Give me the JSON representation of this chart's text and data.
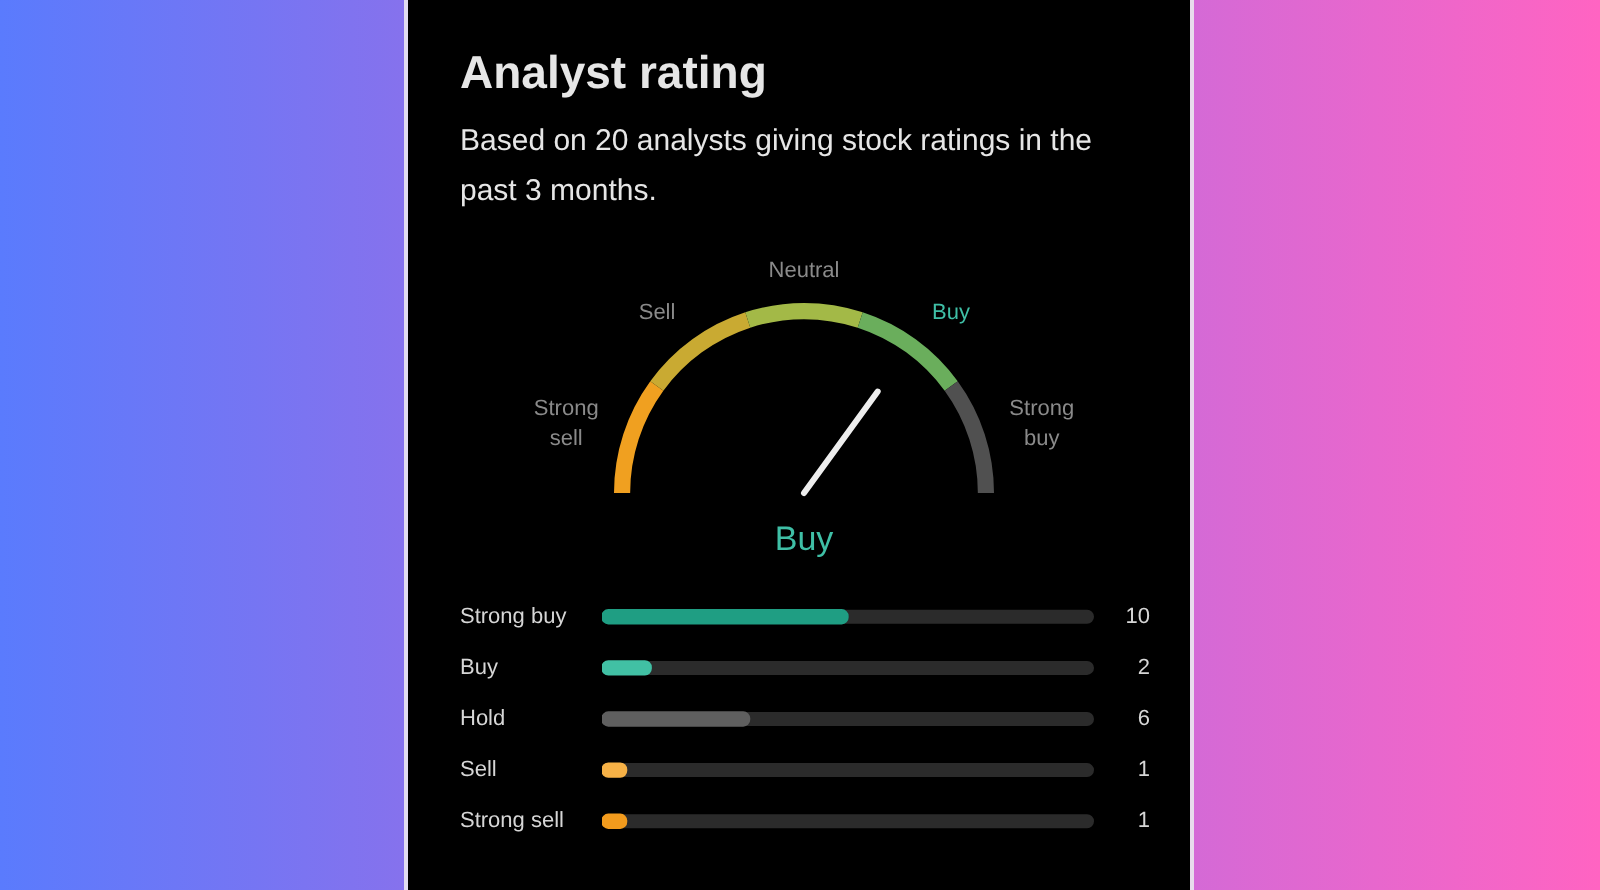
{
  "chart_data": [
    {
      "type": "donut",
      "title": "Analyst rating",
      "subtitle": "Based on 20 analysts giving stock ratings in the past 3 months.",
      "categories": [
        "Strong sell",
        "Sell",
        "Neutral",
        "Buy",
        "Strong buy"
      ],
      "values": [
        20,
        20,
        20,
        20,
        20
      ],
      "colors": [
        "#f0a020",
        "#c9aa32",
        "#a3b947",
        "#6aae5c",
        "#505050"
      ],
      "needle": "Buy",
      "annotations": [
        "Buy"
      ]
    },
    {
      "type": "bar",
      "orientation": "horizontal",
      "categories": [
        "Strong buy",
        "Buy",
        "Hold",
        "Sell",
        "Strong sell"
      ],
      "values": [
        10,
        2,
        6,
        1,
        1
      ],
      "colors": [
        "#1f9e83",
        "#41c0a4",
        "#5f5f5f",
        "#f6b146",
        "#f29b1d"
      ],
      "xlim": [
        0,
        20
      ],
      "data_labels": true,
      "tick_labels": "y"
    }
  ]
}
